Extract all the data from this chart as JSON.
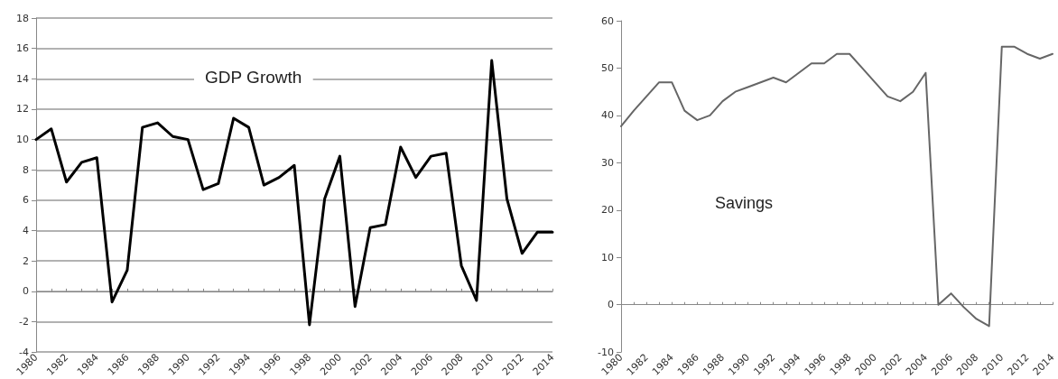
{
  "chart_data": [
    {
      "type": "line",
      "title": "GDP Growth",
      "categories": [
        "1980",
        null,
        "1982",
        null,
        "1984",
        null,
        "1986",
        null,
        "1988",
        null,
        "1990",
        null,
        "1992",
        null,
        "1994",
        null,
        "1996",
        null,
        "1998",
        null,
        "2000",
        null,
        "2002",
        null,
        "2004",
        null,
        "2006",
        null,
        "2008",
        null,
        "2010",
        null,
        "2012",
        null,
        "2014"
      ],
      "series": [
        {
          "color": "#000000",
          "values": [
            10,
            10.7,
            7.2,
            8.5,
            8.8,
            -0.7,
            1.4,
            10.8,
            11.1,
            10.2,
            10,
            6.7,
            7.1,
            11.4,
            10.8,
            7,
            7.5,
            8.3,
            -2.2,
            6.1,
            8.9,
            -1,
            4.2,
            4.4,
            9.5,
            7.5,
            8.9,
            9.1,
            1.7,
            -0.6,
            15.2,
            6.1,
            2.5,
            3.9,
            3.9
          ]
        }
      ],
      "ylim": [
        -4,
        18
      ],
      "yticks": [
        -4,
        -2,
        0,
        2,
        4,
        6,
        8,
        10,
        12,
        14,
        16,
        18
      ],
      "grid": "y",
      "marker": "none",
      "line_style": "solid"
    },
    {
      "type": "line",
      "title": "Savings",
      "categories": [
        "1980",
        null,
        "1982",
        null,
        "1984",
        null,
        "1986",
        null,
        "1988",
        null,
        "1990",
        null,
        "1992",
        null,
        "1994",
        null,
        "1996",
        null,
        "1998",
        null,
        "2000",
        null,
        "2002",
        null,
        "2004",
        null,
        "2006",
        null,
        "2008",
        null,
        "2010",
        null,
        "2012",
        null,
        "2014"
      ],
      "series": [
        {
          "color": "#666666",
          "values": [
            37.7,
            41,
            44,
            47,
            47,
            41,
            39,
            40,
            43,
            45,
            46,
            47,
            48,
            47,
            49,
            51,
            51,
            53,
            53,
            50,
            47,
            44,
            43,
            45,
            49,
            0,
            2.4,
            -0.5,
            -3,
            -4.5,
            54.5,
            54.5,
            53,
            52,
            53
          ]
        }
      ],
      "ylim": [
        -10,
        60
      ],
      "yticks": [
        -10,
        0,
        10,
        20,
        30,
        40,
        50,
        60
      ],
      "marker": "none",
      "line_style": "solid"
    }
  ]
}
